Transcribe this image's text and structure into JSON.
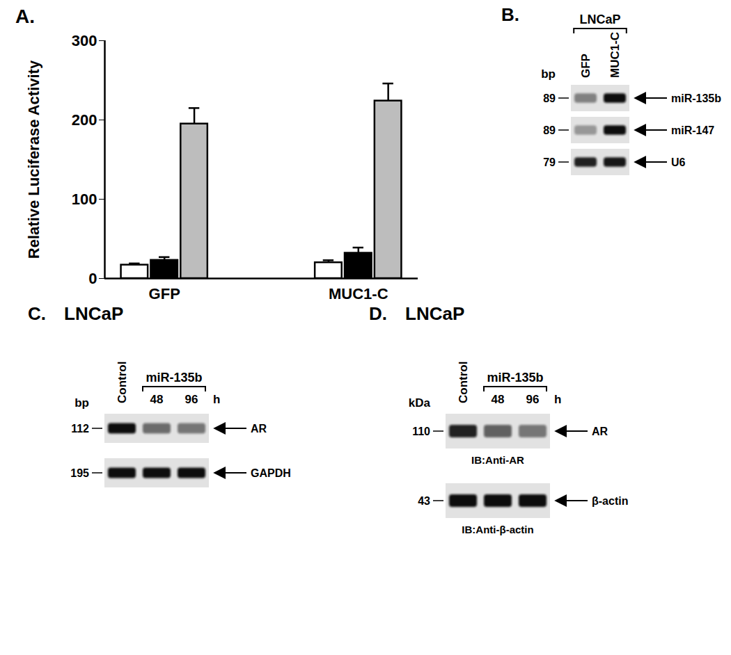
{
  "chart_data": {
    "type": "bar",
    "title": "A.",
    "categories": [
      "GFP",
      "MUC1-C"
    ],
    "series": [
      {
        "color": "#ffffff",
        "values": [
          17,
          20
        ],
        "errors": [
          2,
          3
        ]
      },
      {
        "color": "#000000",
        "values": [
          23,
          32
        ],
        "errors": [
          4,
          7
        ]
      },
      {
        "color": "#bdbdbd",
        "values": [
          195,
          224
        ],
        "errors": [
          20,
          22
        ]
      }
    ],
    "ylabel": "Relative Luciferase Activity",
    "ylim": [
      0,
      300
    ],
    "yticks": [
      0,
      100,
      200,
      300
    ]
  },
  "panels": [
    {
      "label": "B.",
      "size_unit": "bp",
      "lanes": [
        {
          "group": "LNCaP",
          "labels": [
            "GFP",
            "MUC1-C"
          ]
        }
      ],
      "rows": [
        {
          "marker": 89,
          "target": "miR-135b",
          "intensity": [
            0.45,
            1.0
          ]
        },
        {
          "marker": 89,
          "target": "miR-147",
          "intensity": [
            0.35,
            1.0
          ]
        },
        {
          "marker": 79,
          "target": "U6",
          "intensity": [
            0.9,
            0.95
          ]
        }
      ]
    },
    {
      "label": "C.",
      "title": "LNCaP",
      "size_unit": "bp",
      "lanes": [
        {
          "labels": [
            "Control"
          ]
        },
        {
          "group": "miR-135b",
          "labels": [
            "48",
            "96"
          ],
          "unit": "h"
        }
      ],
      "rows": [
        {
          "marker": 112,
          "target": "AR",
          "intensity": [
            1.0,
            0.55,
            0.5
          ]
        },
        {
          "marker": 195,
          "target": "GAPDH",
          "intensity": [
            1.0,
            1.0,
            1.0
          ]
        }
      ]
    },
    {
      "label": "D.",
      "title": "LNCaP",
      "size_unit": "kDa",
      "lanes": [
        {
          "labels": [
            "Control"
          ]
        },
        {
          "group": "miR-135b",
          "labels": [
            "48",
            "96"
          ],
          "unit": "h"
        }
      ],
      "rows": [
        {
          "marker": 110,
          "target": "AR",
          "intensity": [
            0.9,
            0.6,
            0.5
          ],
          "antibody": "IB:Anti-AR"
        },
        {
          "marker": 43,
          "target": "β-actin",
          "intensity": [
            1.0,
            1.0,
            1.0
          ],
          "antibody": "IB:Anti-β-actin"
        }
      ]
    }
  ]
}
